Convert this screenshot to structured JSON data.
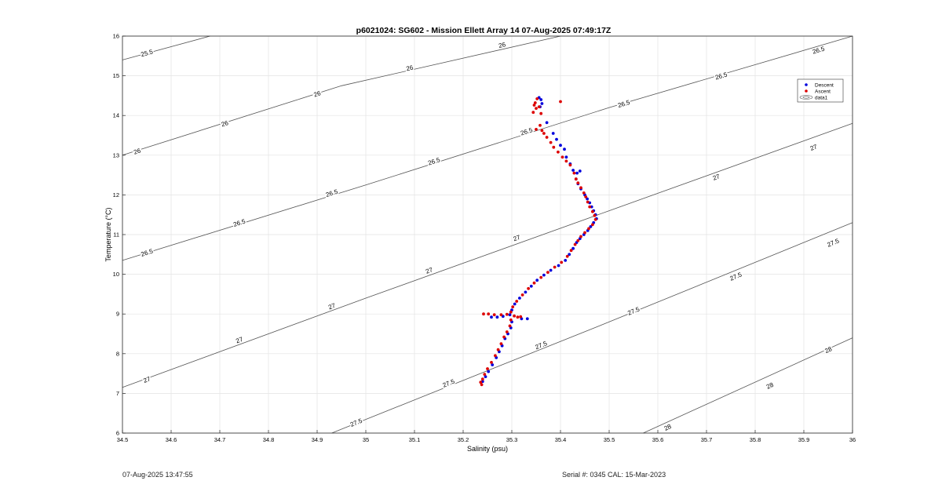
{
  "chart_data": {
    "type": "scatter",
    "title": "p6021024: SG602 - Mission Ellett Array 14 07-Aug-2025 07:49:17Z",
    "xlabel": "Salinity (psu)",
    "ylabel": "Temperature (°C)",
    "xlim": [
      34.5,
      36
    ],
    "ylim": [
      6,
      16
    ],
    "x_ticks": [
      "34.5",
      "34.6",
      "34.7",
      "34.8",
      "34.9",
      "35",
      "35.1",
      "35.2",
      "35.3",
      "35.4",
      "35.5",
      "35.6",
      "35.7",
      "35.8",
      "35.9",
      "36"
    ],
    "y_ticks": [
      "6",
      "7",
      "8",
      "9",
      "10",
      "11",
      "12",
      "13",
      "14",
      "15",
      "16"
    ],
    "grid": true,
    "legend_position": "top-right",
    "legend": [
      "Descent",
      "Ascent",
      "data1"
    ],
    "series": [
      {
        "name": "Descent",
        "color": "#0000dd",
        "points": [
          [
            35.356,
            14.45
          ],
          [
            35.36,
            14.4
          ],
          [
            35.362,
            14.3
          ],
          [
            35.358,
            14.22
          ],
          [
            35.372,
            13.82
          ],
          [
            35.385,
            13.55
          ],
          [
            35.392,
            13.4
          ],
          [
            35.4,
            13.25
          ],
          [
            35.408,
            13.15
          ],
          [
            35.412,
            12.95
          ],
          [
            35.42,
            12.78
          ],
          [
            35.426,
            12.62
          ],
          [
            35.434,
            12.55
          ],
          [
            35.44,
            12.6
          ],
          [
            35.432,
            12.4
          ],
          [
            35.436,
            12.28
          ],
          [
            35.442,
            12.15
          ],
          [
            35.45,
            12.0
          ],
          [
            35.455,
            11.9
          ],
          [
            35.46,
            11.8
          ],
          [
            35.464,
            11.7
          ],
          [
            35.468,
            11.6
          ],
          [
            35.472,
            11.5
          ],
          [
            35.474,
            11.4
          ],
          [
            35.468,
            11.3
          ],
          [
            35.462,
            11.2
          ],
          [
            35.456,
            11.1
          ],
          [
            35.448,
            11.0
          ],
          [
            35.44,
            10.9
          ],
          [
            35.433,
            10.8
          ],
          [
            35.426,
            10.65
          ],
          [
            35.418,
            10.5
          ],
          [
            35.41,
            10.35
          ],
          [
            35.396,
            10.22
          ],
          [
            35.38,
            10.1
          ],
          [
            35.366,
            9.98
          ],
          [
            35.352,
            9.85
          ],
          [
            35.34,
            9.7
          ],
          [
            35.328,
            9.55
          ],
          [
            35.316,
            9.4
          ],
          [
            35.306,
            9.25
          ],
          [
            35.3,
            9.1
          ],
          [
            35.296,
            8.98
          ],
          [
            35.282,
            8.94
          ],
          [
            35.27,
            8.92
          ],
          [
            35.258,
            8.92
          ],
          [
            35.32,
            8.88
          ],
          [
            35.332,
            8.88
          ],
          [
            35.3,
            8.8
          ],
          [
            35.298,
            8.65
          ],
          [
            35.292,
            8.5
          ],
          [
            35.286,
            8.38
          ],
          [
            35.28,
            8.2
          ],
          [
            35.274,
            8.05
          ],
          [
            35.268,
            7.9
          ],
          [
            35.26,
            7.72
          ],
          [
            35.252,
            7.55
          ],
          [
            35.246,
            7.42
          ],
          [
            35.24,
            7.3
          ]
        ]
      },
      {
        "name": "Ascent",
        "color": "#dd0000",
        "points": [
          [
            35.352,
            14.42
          ],
          [
            35.348,
            14.32
          ],
          [
            35.346,
            14.26
          ],
          [
            35.356,
            14.22
          ],
          [
            35.35,
            14.18
          ],
          [
            35.344,
            14.08
          ],
          [
            35.36,
            14.05
          ],
          [
            35.4,
            14.35
          ],
          [
            35.358,
            13.75
          ],
          [
            35.362,
            13.62
          ],
          [
            35.35,
            13.65
          ],
          [
            35.366,
            13.55
          ],
          [
            35.372,
            13.45
          ],
          [
            35.38,
            13.32
          ],
          [
            35.386,
            13.2
          ],
          [
            35.395,
            13.08
          ],
          [
            35.404,
            12.95
          ],
          [
            35.412,
            12.85
          ],
          [
            35.42,
            12.75
          ],
          [
            35.428,
            12.55
          ],
          [
            35.432,
            12.4
          ],
          [
            35.436,
            12.3
          ],
          [
            35.442,
            12.18
          ],
          [
            35.448,
            12.05
          ],
          [
            35.452,
            11.95
          ],
          [
            35.456,
            11.82
          ],
          [
            35.46,
            11.7
          ],
          [
            35.466,
            11.58
          ],
          [
            35.47,
            11.48
          ],
          [
            35.472,
            11.38
          ],
          [
            35.466,
            11.25
          ],
          [
            35.458,
            11.15
          ],
          [
            35.45,
            11.05
          ],
          [
            35.442,
            10.95
          ],
          [
            35.436,
            10.85
          ],
          [
            35.43,
            10.75
          ],
          [
            35.422,
            10.6
          ],
          [
            35.414,
            10.45
          ],
          [
            35.402,
            10.3
          ],
          [
            35.388,
            10.18
          ],
          [
            35.374,
            10.05
          ],
          [
            35.36,
            9.92
          ],
          [
            35.346,
            9.78
          ],
          [
            35.334,
            9.64
          ],
          [
            35.322,
            9.48
          ],
          [
            35.31,
            9.32
          ],
          [
            35.302,
            9.18
          ],
          [
            35.298,
            9.05
          ],
          [
            35.29,
            8.99
          ],
          [
            35.278,
            8.98
          ],
          [
            35.264,
            8.98
          ],
          [
            35.252,
            9.0
          ],
          [
            35.242,
            9.0
          ],
          [
            35.305,
            8.95
          ],
          [
            35.312,
            8.92
          ],
          [
            35.318,
            8.93
          ],
          [
            35.298,
            8.85
          ],
          [
            35.296,
            8.7
          ],
          [
            35.29,
            8.55
          ],
          [
            35.284,
            8.42
          ],
          [
            35.278,
            8.25
          ],
          [
            35.272,
            8.1
          ],
          [
            35.266,
            7.95
          ],
          [
            35.258,
            7.78
          ],
          [
            35.25,
            7.62
          ],
          [
            35.244,
            7.48
          ],
          [
            35.24,
            7.36
          ],
          [
            35.236,
            7.28
          ],
          [
            35.238,
            7.22
          ]
        ]
      }
    ],
    "density_contours": [
      {
        "label": "25.5",
        "points": [
          [
            34.5,
            15.4
          ],
          [
            34.68,
            16.0
          ]
        ],
        "label_at": [
          34.55,
          15.58
        ]
      },
      {
        "label": "26",
        "points": [
          [
            34.5,
            13.0
          ],
          [
            34.95,
            14.75
          ],
          [
            35.4,
            16.0
          ]
        ],
        "label_at": [
          34.53,
          13.1
        ]
      },
      {
        "label": "26",
        "points": [
          [
            34.5,
            13.0
          ],
          [
            34.95,
            14.75
          ],
          [
            35.4,
            16.0
          ]
        ],
        "label_at": [
          34.71,
          13.8
        ]
      },
      {
        "label": "26",
        "points": [
          [
            34.5,
            13.0
          ],
          [
            34.95,
            14.75
          ],
          [
            35.4,
            16.0
          ]
        ],
        "label_at": [
          34.9,
          14.55
        ]
      },
      {
        "label": "26",
        "points": [
          [
            34.5,
            13.0
          ],
          [
            34.95,
            14.75
          ],
          [
            35.4,
            16.0
          ]
        ],
        "label_at": [
          35.09,
          15.2
        ]
      },
      {
        "label": "26",
        "points": [
          [
            34.5,
            13.0
          ],
          [
            34.95,
            14.75
          ],
          [
            35.4,
            16.0
          ]
        ],
        "label_at": [
          35.28,
          15.78
        ]
      },
      {
        "label": "26.5",
        "points": [
          [
            34.5,
            10.35
          ],
          [
            35.0,
            12.25
          ],
          [
            35.5,
            14.2
          ],
          [
            36.0,
            16.0
          ]
        ],
        "label_at": [
          34.55,
          10.55
        ]
      },
      {
        "label": "26.5",
        "points": [
          [
            34.5,
            10.35
          ],
          [
            35.0,
            12.25
          ],
          [
            35.5,
            14.2
          ],
          [
            36.0,
            16.0
          ]
        ],
        "label_at": [
          34.74,
          11.3
        ]
      },
      {
        "label": "26.5",
        "points": [
          [
            34.5,
            10.35
          ],
          [
            35.0,
            12.25
          ],
          [
            35.5,
            14.2
          ],
          [
            36.0,
            16.0
          ]
        ],
        "label_at": [
          34.93,
          12.05
        ]
      },
      {
        "label": "26.5",
        "points": [
          [
            34.5,
            10.35
          ],
          [
            35.0,
            12.25
          ],
          [
            35.5,
            14.2
          ],
          [
            36.0,
            16.0
          ]
        ],
        "label_at": [
          35.14,
          12.85
        ]
      },
      {
        "label": "26.5",
        "points": [
          [
            34.5,
            10.35
          ],
          [
            35.0,
            12.25
          ],
          [
            35.5,
            14.2
          ],
          [
            36.0,
            16.0
          ]
        ],
        "label_at": [
          35.33,
          13.6
        ]
      },
      {
        "label": "26.5",
        "points": [
          [
            34.5,
            10.35
          ],
          [
            35.0,
            12.25
          ],
          [
            35.5,
            14.2
          ],
          [
            36.0,
            16.0
          ]
        ],
        "label_at": [
          35.53,
          14.3
        ]
      },
      {
        "label": "26.5",
        "points": [
          [
            34.5,
            10.35
          ],
          [
            35.0,
            12.25
          ],
          [
            35.5,
            14.2
          ],
          [
            36.0,
            16.0
          ]
        ],
        "label_at": [
          35.73,
          15.0
        ]
      },
      {
        "label": "26.5",
        "points": [
          [
            34.5,
            10.35
          ],
          [
            35.0,
            12.25
          ],
          [
            35.5,
            14.2
          ],
          [
            36.0,
            16.0
          ]
        ],
        "label_at": [
          35.93,
          15.65
        ]
      },
      {
        "label": "27",
        "points": [
          [
            34.5,
            7.15
          ],
          [
            35.0,
            9.4
          ],
          [
            35.5,
            11.6
          ],
          [
            36.0,
            13.8
          ]
        ],
        "label_at": [
          34.55,
          7.35
        ]
      },
      {
        "label": "27",
        "points": [
          [
            34.5,
            7.15
          ],
          [
            35.0,
            9.4
          ],
          [
            35.5,
            11.6
          ],
          [
            36.0,
            13.8
          ]
        ],
        "label_at": [
          34.74,
          8.35
        ]
      },
      {
        "label": "27",
        "points": [
          [
            34.5,
            7.15
          ],
          [
            35.0,
            9.4
          ],
          [
            35.5,
            11.6
          ],
          [
            36.0,
            13.8
          ]
        ],
        "label_at": [
          34.93,
          9.2
        ]
      },
      {
        "label": "27",
        "points": [
          [
            34.5,
            7.15
          ],
          [
            35.0,
            9.4
          ],
          [
            35.5,
            11.6
          ],
          [
            36.0,
            13.8
          ]
        ],
        "label_at": [
          35.13,
          10.1
        ]
      },
      {
        "label": "27",
        "points": [
          [
            34.5,
            7.15
          ],
          [
            35.0,
            9.4
          ],
          [
            35.5,
            11.6
          ],
          [
            36.0,
            13.8
          ]
        ],
        "label_at": [
          35.31,
          10.92
        ]
      },
      {
        "label": "27",
        "points": [
          [
            34.5,
            7.15
          ],
          [
            35.0,
            9.4
          ],
          [
            35.5,
            11.6
          ],
          [
            36.0,
            13.8
          ]
        ],
        "label_at": [
          35.72,
          12.45
        ]
      },
      {
        "label": "27",
        "points": [
          [
            34.5,
            7.15
          ],
          [
            35.0,
            9.4
          ],
          [
            35.5,
            11.6
          ],
          [
            36.0,
            13.8
          ]
        ],
        "label_at": [
          35.92,
          13.2
        ]
      },
      {
        "label": "27.5",
        "points": [
          [
            34.93,
            6.0
          ],
          [
            35.5,
            8.8
          ],
          [
            36.0,
            11.3
          ]
        ],
        "label_at": [
          34.98,
          6.27
        ]
      },
      {
        "label": "27.5",
        "points": [
          [
            34.93,
            6.0
          ],
          [
            35.5,
            8.8
          ],
          [
            36.0,
            11.3
          ]
        ],
        "label_at": [
          35.17,
          7.26
        ]
      },
      {
        "label": "27.5",
        "points": [
          [
            34.93,
            6.0
          ],
          [
            35.5,
            8.8
          ],
          [
            36.0,
            11.3
          ]
        ],
        "label_at": [
          35.36,
          8.22
        ]
      },
      {
        "label": "27.5",
        "points": [
          [
            34.93,
            6.0
          ],
          [
            35.5,
            8.8
          ],
          [
            36.0,
            11.3
          ]
        ],
        "label_at": [
          35.55,
          9.08
        ]
      },
      {
        "label": "27.5",
        "points": [
          [
            34.93,
            6.0
          ],
          [
            35.5,
            8.8
          ],
          [
            36.0,
            11.3
          ]
        ],
        "label_at": [
          35.76,
          9.95
        ]
      },
      {
        "label": "27.5",
        "points": [
          [
            34.93,
            6.0
          ],
          [
            35.5,
            8.8
          ],
          [
            36.0,
            11.3
          ]
        ],
        "label_at": [
          35.96,
          10.8
        ]
      },
      {
        "label": "28",
        "points": [
          [
            35.57,
            6.0
          ],
          [
            36.0,
            8.4
          ]
        ],
        "label_at": [
          35.62,
          6.15
        ]
      },
      {
        "label": "28",
        "points": [
          [
            35.57,
            6.0
          ],
          [
            36.0,
            8.4
          ]
        ],
        "label_at": [
          35.83,
          7.2
        ]
      },
      {
        "label": "28",
        "points": [
          [
            35.57,
            6.0
          ],
          [
            36.0,
            8.4
          ]
        ],
        "label_at": [
          35.95,
          8.1
        ]
      }
    ]
  },
  "footer": {
    "timestamp": "07-Aug-2025 13:47:55",
    "serial": "Serial #: 0345  CAL: 15-Mar-2023"
  }
}
